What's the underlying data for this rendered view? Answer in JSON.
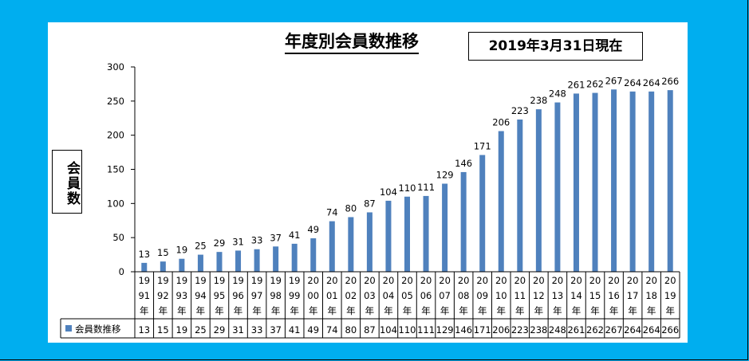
{
  "chart_data": {
    "type": "bar",
    "title": "年度別会員数推移",
    "subtitle": "2019年3月31日現在",
    "ylabel": "会員数",
    "xlabel": "",
    "ylim": [
      0,
      300
    ],
    "yticks": [
      0,
      50,
      100,
      150,
      200,
      250,
      300
    ],
    "grid": false,
    "legend_placement": "data-table",
    "categories": [
      "1991年",
      "1992年",
      "1993年",
      "1994年",
      "1995年",
      "1996年",
      "1997年",
      "1998年",
      "1999年",
      "2000年",
      "2001年",
      "2002年",
      "2003年",
      "2004年",
      "2005年",
      "2006年",
      "2007年",
      "2008年",
      "2009年",
      "2010年",
      "2011年",
      "2012年",
      "2013年",
      "2014年",
      "2015年",
      "2016年",
      "2017年",
      "2018年",
      "2019年"
    ],
    "series": [
      {
        "name": "会員数推移",
        "color": "#4F81BD",
        "values": [
          13,
          15,
          19,
          25,
          29,
          31,
          33,
          37,
          41,
          49,
          74,
          80,
          87,
          104,
          110,
          111,
          129,
          146,
          171,
          206,
          223,
          238,
          248,
          261,
          262,
          267,
          264,
          264,
          266
        ]
      }
    ]
  }
}
